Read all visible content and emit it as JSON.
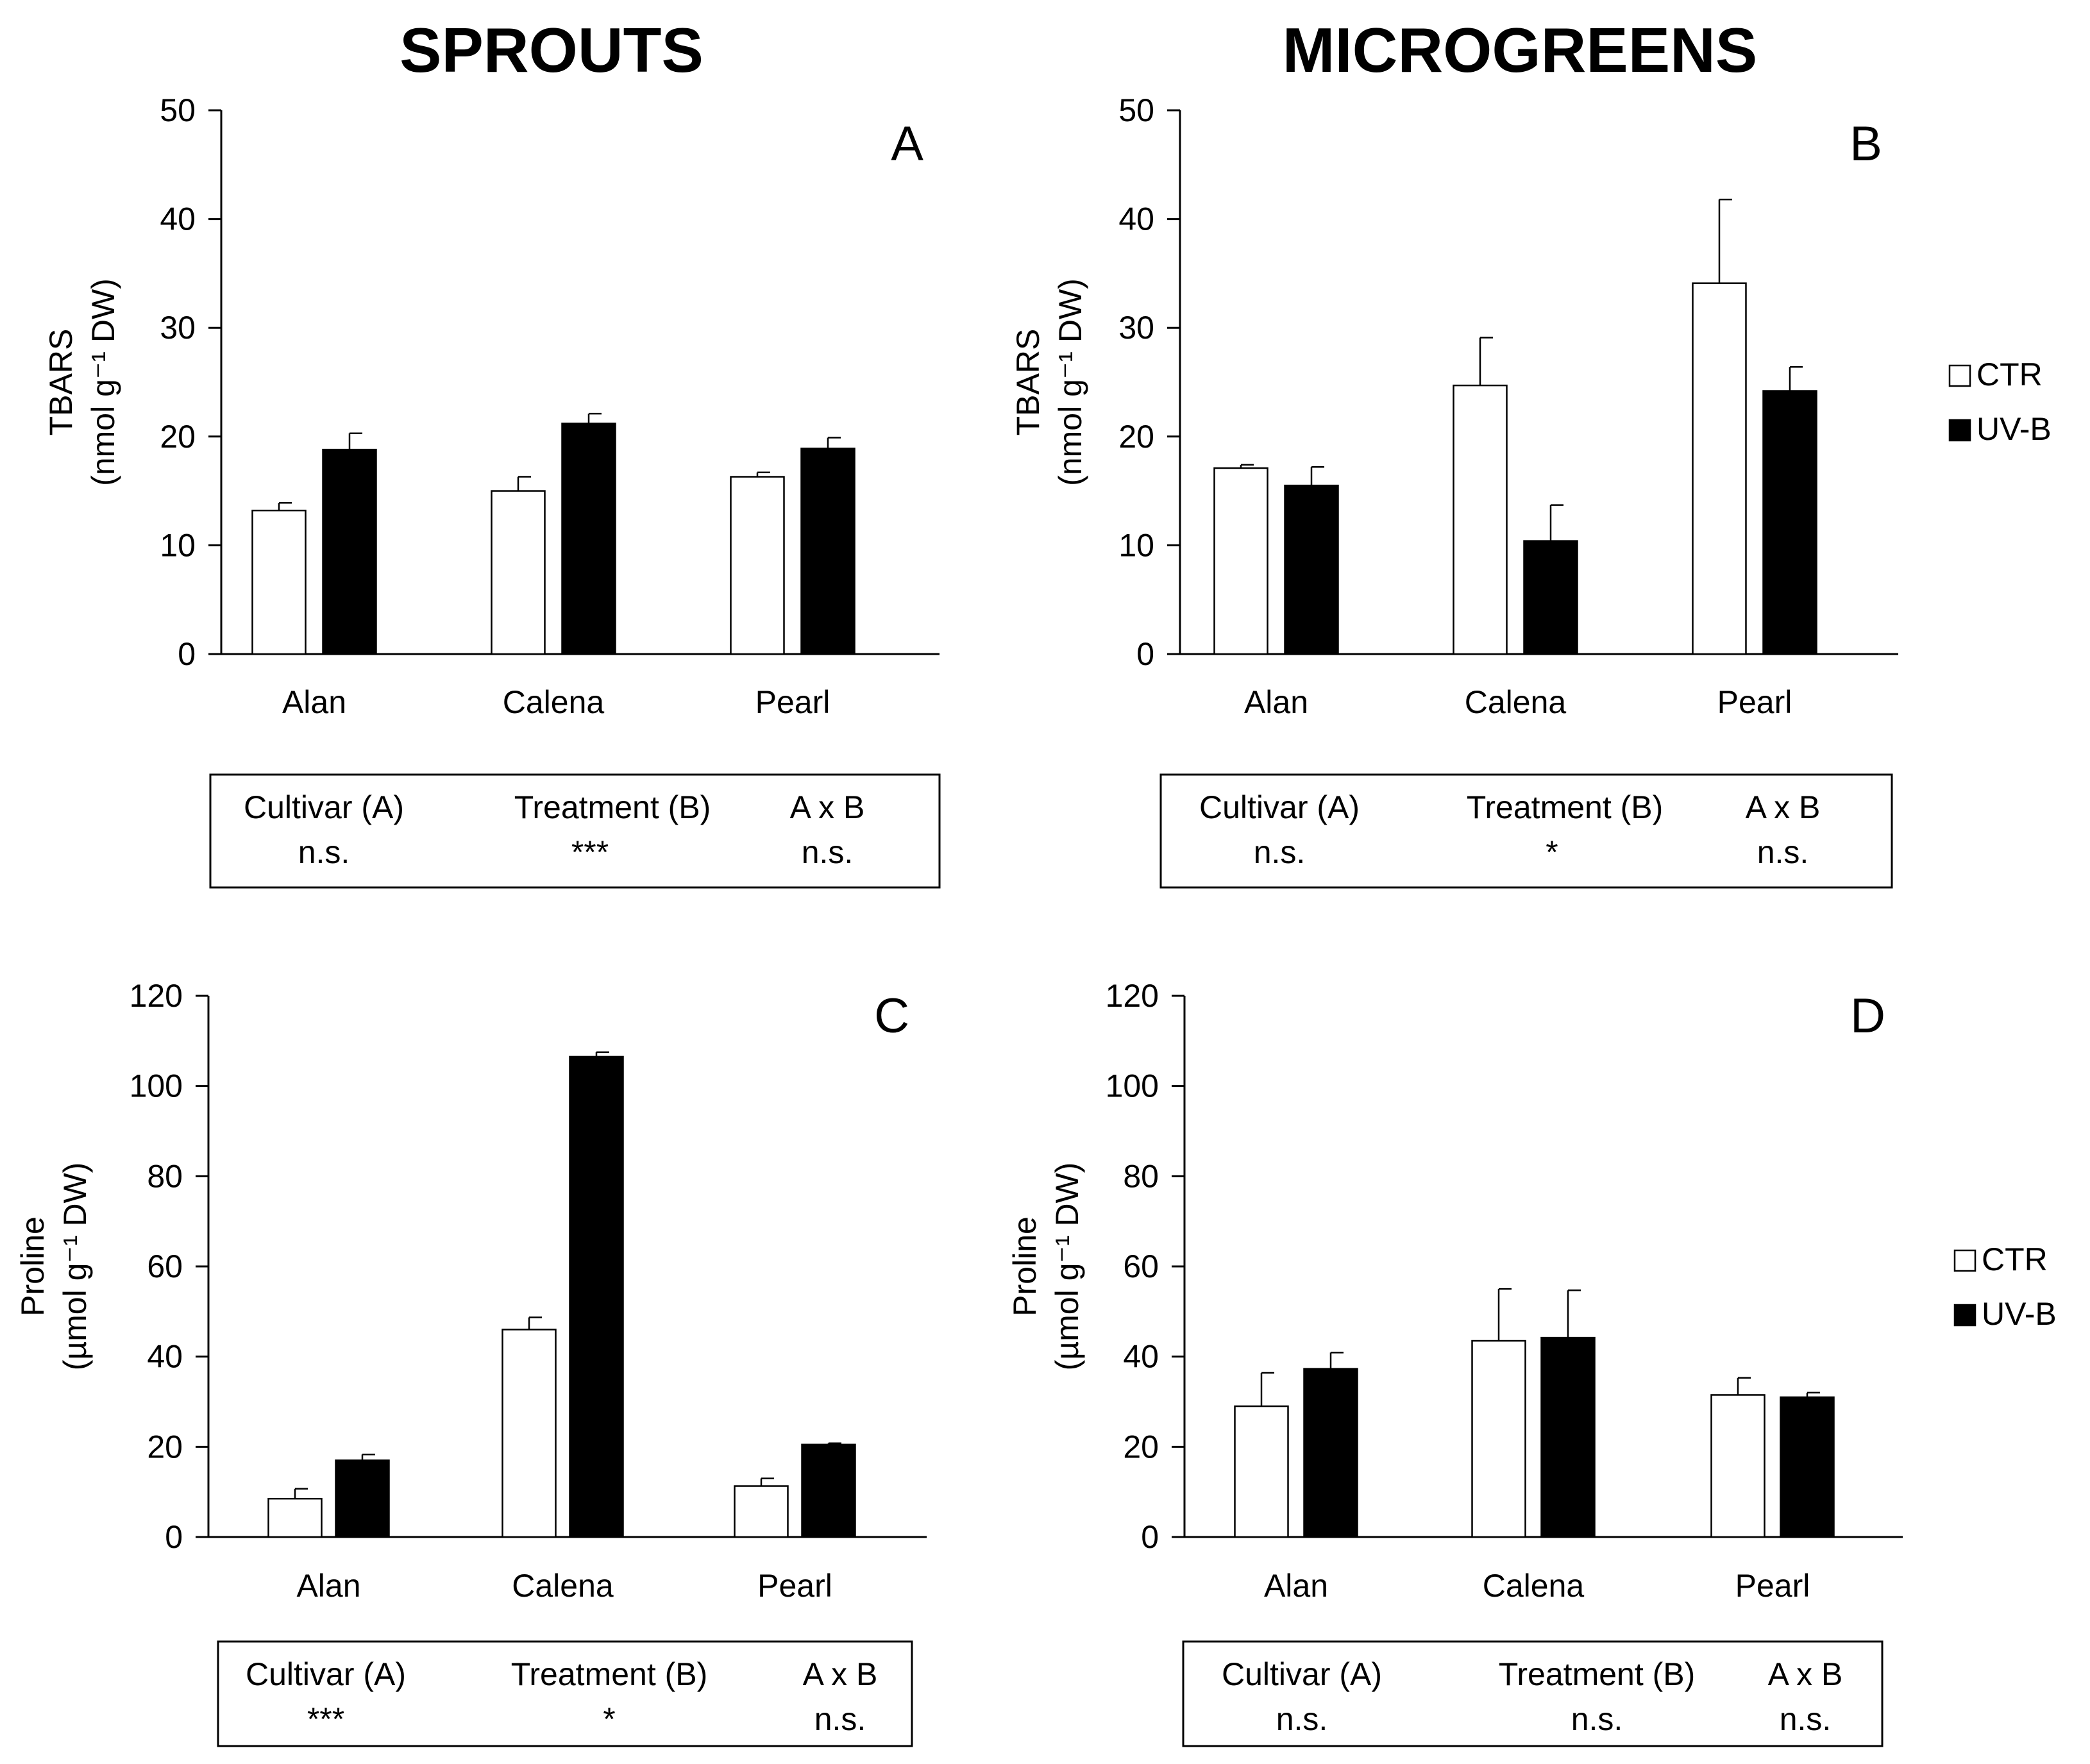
{
  "columns": {
    "left_title": "SPROUTS",
    "right_title": "MICROGREENS"
  },
  "legends": [
    {
      "items": [
        {
          "label": "CTR",
          "fill": "#ffffff"
        },
        {
          "label": "UV-B",
          "fill": "#000000"
        }
      ]
    },
    {
      "items": [
        {
          "label": "CTR",
          "fill": "#ffffff"
        },
        {
          "label": "UV-B",
          "fill": "#000000"
        }
      ]
    }
  ],
  "chart_data": [
    {
      "type": "bar",
      "panel": "A",
      "categories": [
        "Alan",
        "Calena",
        "Pearl"
      ],
      "series": [
        {
          "name": "CTR",
          "values": [
            13.2,
            15.0,
            16.3
          ],
          "errors": [
            0.7,
            1.3,
            0.4
          ]
        },
        {
          "name": "UV-B",
          "values": [
            18.8,
            21.2,
            18.9
          ],
          "errors": [
            1.5,
            0.9,
            1.0
          ]
        }
      ],
      "ylabel_line1": "TBARS",
      "ylabel_line2": "(nmol g⁻¹ DW)",
      "ylim": [
        0,
        50
      ],
      "yticks": [
        0,
        10,
        20,
        30,
        40,
        50
      ],
      "stats": {
        "headers": [
          "Cultivar (A)",
          "Treatment (B)",
          "A x B"
        ],
        "values": [
          "n.s.",
          "***",
          "n.s."
        ]
      }
    },
    {
      "type": "bar",
      "panel": "B",
      "categories": [
        "Alan",
        "Calena",
        "Pearl"
      ],
      "series": [
        {
          "name": "CTR",
          "values": [
            17.1,
            24.7,
            34.1
          ],
          "errors": [
            0.3,
            4.4,
            7.7
          ]
        },
        {
          "name": "UV-B",
          "values": [
            15.5,
            10.4,
            24.2
          ],
          "errors": [
            1.7,
            3.3,
            2.2
          ]
        }
      ],
      "ylabel_line1": "TBARS",
      "ylabel_line2": "(nmol g⁻¹ DW)",
      "ylim": [
        0,
        50
      ],
      "yticks": [
        0,
        10,
        20,
        30,
        40,
        50
      ],
      "stats": {
        "headers": [
          "Cultivar (A)",
          "Treatment (B)",
          "A x B"
        ],
        "values": [
          "n.s.",
          "*",
          "n.s."
        ]
      }
    },
    {
      "type": "bar",
      "panel": "C",
      "categories": [
        "Alan",
        "Calena",
        "Pearl"
      ],
      "series": [
        {
          "name": "CTR",
          "values": [
            8.5,
            46.0,
            11.3
          ],
          "errors": [
            2.2,
            2.7,
            1.7
          ]
        },
        {
          "name": "UV-B",
          "values": [
            17.0,
            106.5,
            20.5
          ],
          "errors": [
            1.3,
            1.0,
            0.3
          ]
        }
      ],
      "ylabel_line1": "Proline",
      "ylabel_line2": "(µmol g⁻¹ DW)",
      "ylim": [
        0,
        120
      ],
      "yticks": [
        0,
        20,
        40,
        60,
        80,
        100,
        120
      ],
      "stats": {
        "headers": [
          "Cultivar (A)",
          "Treatment (B)",
          "A x B"
        ],
        "values": [
          "***",
          "*",
          "n.s."
        ]
      }
    },
    {
      "type": "bar",
      "panel": "D",
      "categories": [
        "Alan",
        "Calena",
        "Pearl"
      ],
      "series": [
        {
          "name": "CTR",
          "values": [
            29.0,
            43.5,
            31.5
          ],
          "errors": [
            7.4,
            11.5,
            3.8
          ]
        },
        {
          "name": "UV-B",
          "values": [
            37.3,
            44.2,
            31.0
          ],
          "errors": [
            3.6,
            10.5,
            1.0
          ]
        }
      ],
      "ylabel_line1": "Proline",
      "ylabel_line2": "(µmol g⁻¹ DW)",
      "ylim": [
        0,
        120
      ],
      "yticks": [
        0,
        20,
        40,
        60,
        80,
        100,
        120
      ],
      "stats": {
        "headers": [
          "Cultivar (A)",
          "Treatment (B)",
          "A x B"
        ],
        "values": [
          "n.s.",
          "n.s.",
          "n.s."
        ]
      }
    }
  ]
}
